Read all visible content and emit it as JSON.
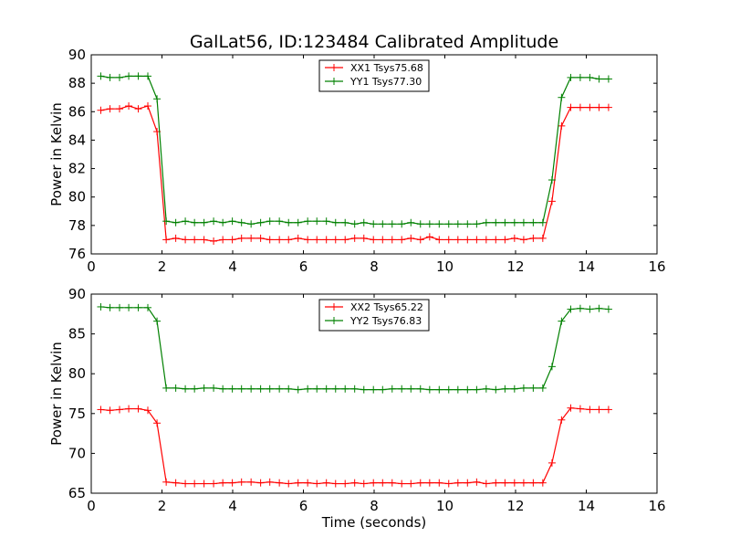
{
  "figure": {
    "title": "GalLat56, ID:123484 Calibrated Amplitude"
  },
  "colors": {
    "red": "#ff0000",
    "green": "#008000"
  },
  "chart_data": [
    {
      "type": "line",
      "title": "GalLat56, ID:123484 Calibrated Amplitude",
      "xlabel": "",
      "ylabel": "Power in Kelvin",
      "xlim": [
        0,
        16
      ],
      "ylim": [
        76,
        90
      ],
      "xticks": [
        "0",
        "2",
        "4",
        "6",
        "8",
        "10",
        "12",
        "14",
        "16"
      ],
      "yticks": [
        "76",
        "78",
        "80",
        "82",
        "84",
        "86",
        "88",
        "90"
      ],
      "grid": false,
      "legend": "top-center",
      "x": [
        0.27,
        0.53,
        0.8,
        1.06,
        1.33,
        1.6,
        1.86,
        2.12,
        2.39,
        2.66,
        2.92,
        3.19,
        3.46,
        3.72,
        3.99,
        4.25,
        4.52,
        4.79,
        5.05,
        5.32,
        5.58,
        5.85,
        6.12,
        6.38,
        6.65,
        6.91,
        7.18,
        7.45,
        7.71,
        7.98,
        8.24,
        8.51,
        8.78,
        9.04,
        9.31,
        9.57,
        9.84,
        10.11,
        10.37,
        10.64,
        10.9,
        11.17,
        11.44,
        11.7,
        11.97,
        12.23,
        12.5,
        12.77,
        13.03,
        13.3,
        13.56,
        13.83,
        14.1,
        14.36,
        14.63
      ],
      "series": [
        {
          "name": "XX1 Tsys75.68",
          "color": "#ff0000",
          "values": [
            86.1,
            86.2,
            86.2,
            86.4,
            86.2,
            86.4,
            84.6,
            77.0,
            77.1,
            77.0,
            77.0,
            77.0,
            76.9,
            77.0,
            77.0,
            77.1,
            77.1,
            77.1,
            77.0,
            77.0,
            77.0,
            77.1,
            77.0,
            77.0,
            77.0,
            77.0,
            77.0,
            77.1,
            77.1,
            77.0,
            77.0,
            77.0,
            77.0,
            77.1,
            77.0,
            77.2,
            77.0,
            77.0,
            77.0,
            77.0,
            77.0,
            77.0,
            77.0,
            77.0,
            77.1,
            77.0,
            77.1,
            77.1,
            79.7,
            85.0,
            86.3,
            86.3,
            86.3,
            86.3,
            86.3
          ]
        },
        {
          "name": "YY1 Tsys77.30",
          "color": "#008000",
          "values": [
            88.5,
            88.4,
            88.4,
            88.5,
            88.5,
            88.5,
            86.9,
            78.3,
            78.2,
            78.3,
            78.2,
            78.2,
            78.3,
            78.2,
            78.3,
            78.2,
            78.1,
            78.2,
            78.3,
            78.3,
            78.2,
            78.2,
            78.3,
            78.3,
            78.3,
            78.2,
            78.2,
            78.1,
            78.2,
            78.1,
            78.1,
            78.1,
            78.1,
            78.2,
            78.1,
            78.1,
            78.1,
            78.1,
            78.1,
            78.1,
            78.1,
            78.2,
            78.2,
            78.2,
            78.2,
            78.2,
            78.2,
            78.2,
            81.2,
            87.0,
            88.4,
            88.4,
            88.4,
            88.3,
            88.3
          ]
        }
      ]
    },
    {
      "type": "line",
      "xlabel": "Time (seconds)",
      "ylabel": "Power in Kelvin",
      "xlim": [
        0,
        16
      ],
      "ylim": [
        65,
        90
      ],
      "xticks": [
        "0",
        "2",
        "4",
        "6",
        "8",
        "10",
        "12",
        "14",
        "16"
      ],
      "yticks": [
        "65",
        "70",
        "75",
        "80",
        "85",
        "90"
      ],
      "grid": false,
      "legend": "top-center",
      "x": [
        0.27,
        0.53,
        0.8,
        1.06,
        1.33,
        1.6,
        1.86,
        2.12,
        2.39,
        2.66,
        2.92,
        3.19,
        3.46,
        3.72,
        3.99,
        4.25,
        4.52,
        4.79,
        5.05,
        5.32,
        5.58,
        5.85,
        6.12,
        6.38,
        6.65,
        6.91,
        7.18,
        7.45,
        7.71,
        7.98,
        8.24,
        8.51,
        8.78,
        9.04,
        9.31,
        9.57,
        9.84,
        10.11,
        10.37,
        10.64,
        10.9,
        11.17,
        11.44,
        11.7,
        11.97,
        12.23,
        12.5,
        12.77,
        13.03,
        13.3,
        13.56,
        13.83,
        14.1,
        14.36,
        14.63
      ],
      "series": [
        {
          "name": "XX2 Tsys65.22",
          "color": "#ff0000",
          "values": [
            75.5,
            75.4,
            75.5,
            75.6,
            75.6,
            75.4,
            73.8,
            66.4,
            66.3,
            66.2,
            66.2,
            66.2,
            66.2,
            66.3,
            66.3,
            66.4,
            66.4,
            66.3,
            66.4,
            66.3,
            66.2,
            66.3,
            66.3,
            66.2,
            66.3,
            66.2,
            66.2,
            66.3,
            66.2,
            66.3,
            66.3,
            66.3,
            66.2,
            66.2,
            66.3,
            66.3,
            66.3,
            66.2,
            66.3,
            66.3,
            66.4,
            66.2,
            66.3,
            66.3,
            66.3,
            66.3,
            66.3,
            66.3,
            68.8,
            74.2,
            75.7,
            75.6,
            75.5,
            75.5,
            75.5
          ]
        },
        {
          "name": "YY2 Tsys76.83",
          "color": "#008000",
          "values": [
            88.4,
            88.3,
            88.3,
            88.3,
            88.3,
            88.3,
            86.6,
            78.2,
            78.2,
            78.1,
            78.1,
            78.2,
            78.2,
            78.1,
            78.1,
            78.1,
            78.1,
            78.1,
            78.1,
            78.1,
            78.1,
            78.0,
            78.1,
            78.1,
            78.1,
            78.1,
            78.1,
            78.1,
            78.0,
            78.0,
            78.0,
            78.1,
            78.1,
            78.1,
            78.1,
            78.0,
            78.0,
            78.0,
            78.0,
            78.0,
            78.0,
            78.1,
            78.0,
            78.1,
            78.1,
            78.2,
            78.2,
            78.2,
            80.9,
            86.6,
            88.1,
            88.2,
            88.1,
            88.2,
            88.1
          ]
        }
      ]
    }
  ]
}
